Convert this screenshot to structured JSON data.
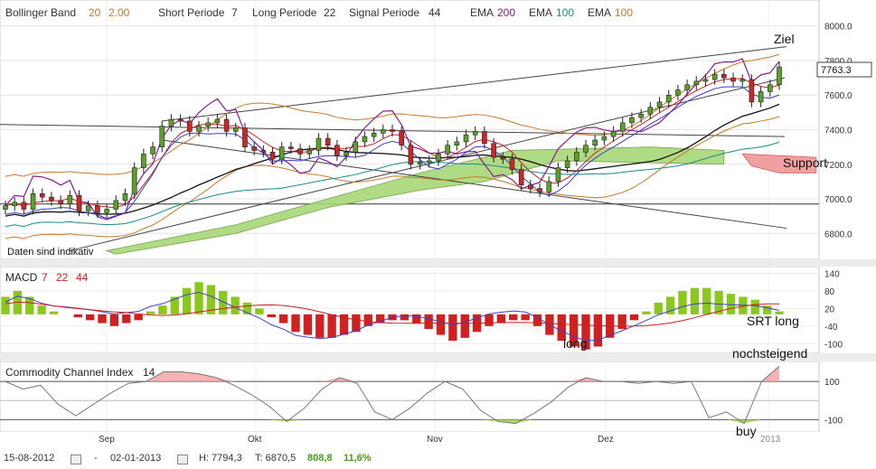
{
  "legend": {
    "bollinger_label": "Bollinger Band",
    "bollinger_p1": "20",
    "bollinger_p2": "2.00",
    "short_label": "Short Periode",
    "short_val": "7",
    "long_label": "Long Periode",
    "long_val": "22",
    "signal_label": "Signal Periode",
    "signal_val": "44",
    "ema1_label": "EMA",
    "ema1_val": "200",
    "ema2_label": "EMA",
    "ema2_val": "100",
    "ema3_label": "EMA",
    "ema3_val": "100"
  },
  "colors": {
    "bollinger": "#c8782a",
    "ema200": "#8a1a8a",
    "ema100a": "#1a8a8a",
    "ema100b": "#c8782a",
    "candle_up": "#5aa02a",
    "candle_down": "#c8282a",
    "price_box": "#ffffff",
    "cloud_green": "#a8d878",
    "cloud_red": "#f0a0a0",
    "macd_line": "#4040c8",
    "signal_line": "#c82020",
    "cci_line": "#777777"
  },
  "annotations": {
    "ziel": "Ziel",
    "support": "Support",
    "daten": "Daten sind indikativ",
    "srt_long": "SRT long",
    "long": "long",
    "nochsteigend": "nochsteigend",
    "buy": "buy"
  },
  "price_label": "7763.3",
  "macd": {
    "title": "MACD",
    "p1": "7",
    "p2": "22",
    "p3": "44",
    "y_ticks": [
      "140",
      "80",
      "20",
      "-40",
      "-100"
    ]
  },
  "cci": {
    "title": "Commodity Channel Index",
    "period": "14",
    "y_ticks": [
      "100",
      "-100"
    ]
  },
  "footer": {
    "from": "15-08-2012",
    "sep": "-",
    "to": "02-01-2013",
    "high": "H: 7794,3",
    "low": "T: 6870,5",
    "change": "808,8",
    "change_pct": "11,6%"
  },
  "chart_data": {
    "type": "candlestick",
    "title": "Bollinger Band 20 2.00",
    "x_tick_labels": [
      "Sep",
      "Okt",
      "Nov",
      "Dez",
      "2013"
    ],
    "y_tick_labels": [
      "8000.0",
      "7800.0",
      "7600.0",
      "7400.0",
      "7200.0",
      "7000.0",
      "6800.0"
    ],
    "ylim": [
      6650,
      8150
    ],
    "last_price": 7763.3,
    "high": 7794.3,
    "low": 6870.5,
    "close_series": [
      6960,
      6980,
      6940,
      7030,
      7010,
      6990,
      6970,
      7020,
      6930,
      6960,
      6920,
      6940,
      6990,
      7030,
      7180,
      7260,
      7300,
      7420,
      7460,
      7450,
      7390,
      7420,
      7440,
      7460,
      7390,
      7410,
      7300,
      7280,
      7270,
      7230,
      7300,
      7290,
      7260,
      7280,
      7350,
      7310,
      7250,
      7270,
      7330,
      7360,
      7380,
      7400,
      7390,
      7310,
      7200,
      7210,
      7220,
      7260,
      7310,
      7330,
      7370,
      7390,
      7320,
      7240,
      7230,
      7170,
      7080,
      7060,
      7040,
      7100,
      7180,
      7220,
      7270,
      7310,
      7340,
      7360,
      7390,
      7440,
      7470,
      7490,
      7530,
      7560,
      7600,
      7630,
      7660,
      7680,
      7690,
      7720,
      7700,
      7680,
      7690,
      7560,
      7620,
      7660,
      7763
    ],
    "macd_hist": [
      60,
      80,
      60,
      30,
      10,
      0,
      -10,
      -20,
      -30,
      -40,
      -30,
      -20,
      10,
      30,
      60,
      90,
      110,
      100,
      80,
      60,
      40,
      20,
      -10,
      -30,
      -60,
      -70,
      -80,
      -80,
      -70,
      -60,
      -40,
      -30,
      -20,
      -20,
      -30,
      -50,
      -70,
      -90,
      -80,
      -60,
      -40,
      -30,
      -20,
      -20,
      -40,
      -70,
      -90,
      -110,
      -120,
      -110,
      -80,
      -50,
      -20,
      10,
      40,
      60,
      80,
      90,
      90,
      80,
      70,
      60,
      50,
      30,
      10
    ],
    "cci_values": [
      100,
      60,
      80,
      -20,
      -80,
      -20,
      40,
      90,
      100,
      150,
      150,
      140,
      120,
      80,
      30,
      -30,
      -110,
      -40,
      60,
      120,
      90,
      -60,
      -100,
      -40,
      40,
      100,
      60,
      -50,
      -110,
      -120,
      -70,
      -10,
      70,
      120,
      100,
      100,
      90,
      100,
      90,
      100,
      -90,
      -60,
      -120,
      100,
      180
    ]
  }
}
